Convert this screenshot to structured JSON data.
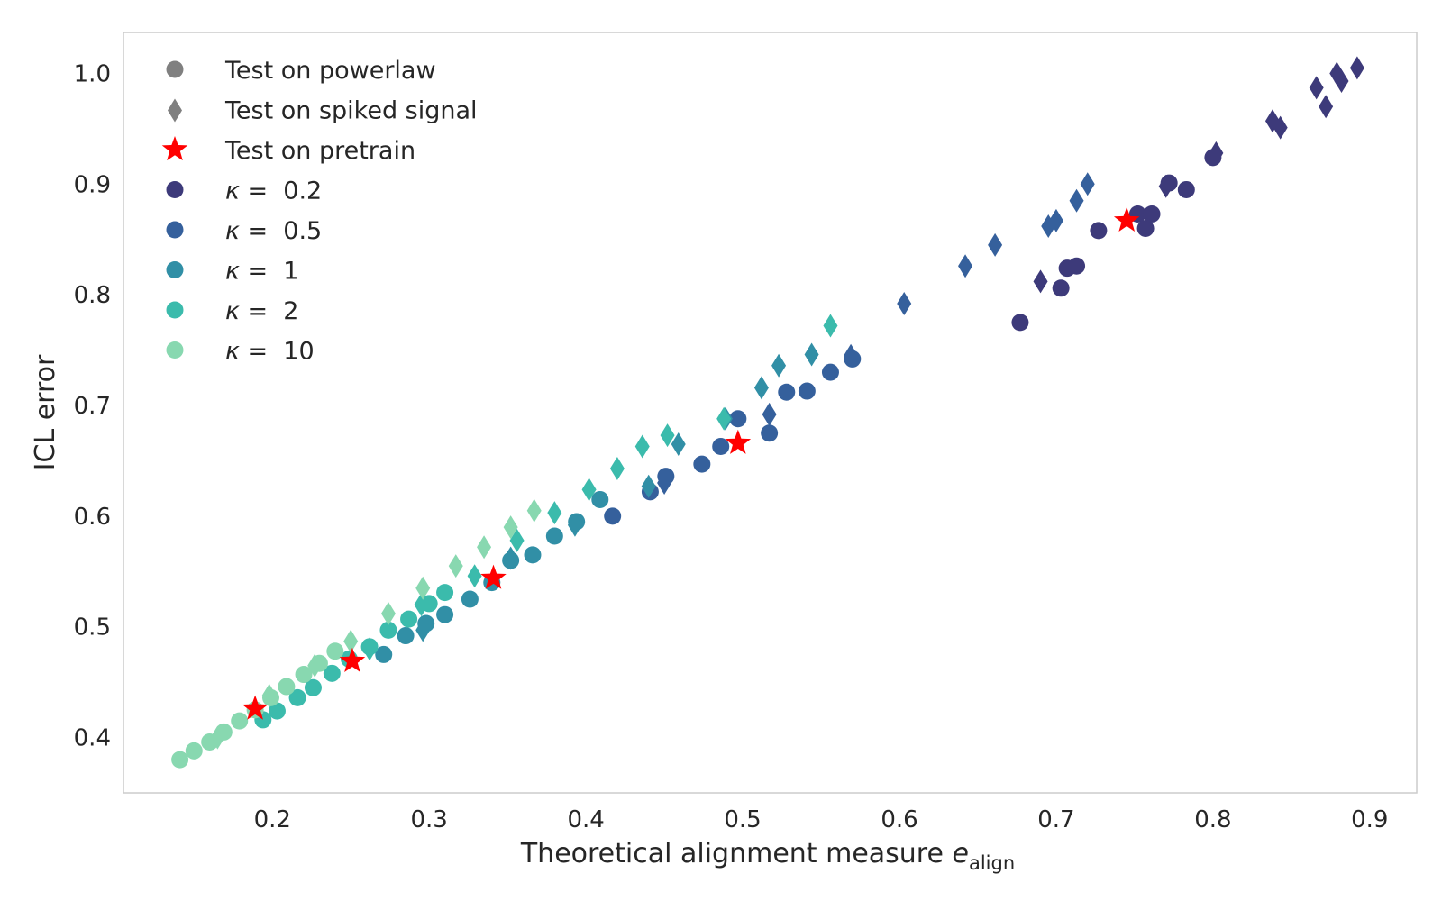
{
  "chart_data": {
    "type": "scatter",
    "xlabel": "Theoretical alignment measure",
    "xlabel_symbol": "e",
    "xlabel_subscript": "align",
    "ylabel": "ICL error",
    "xlim": [
      0.105,
      0.93
    ],
    "ylim": [
      0.35,
      1.037
    ],
    "xticks": [
      0.2,
      0.3,
      0.4,
      0.5,
      0.6,
      0.7,
      0.8,
      0.9
    ],
    "xtick_labels": [
      "0.2",
      "0.3",
      "0.4",
      "0.5",
      "0.6",
      "0.7",
      "0.8",
      "0.9"
    ],
    "yticks": [
      0.4,
      0.5,
      0.6,
      0.7,
      0.8,
      0.9,
      1.0
    ],
    "ytick_labels": [
      "0.4",
      "0.5",
      "0.6",
      "0.7",
      "0.8",
      "0.9",
      "1.0"
    ],
    "grid": false,
    "legend_position": "top-left",
    "legend": [
      {
        "kind": "marker",
        "marker": "circle",
        "color": "#808080",
        "label": "Test on powerlaw"
      },
      {
        "kind": "marker",
        "marker": "diamond",
        "color": "#808080",
        "label": "Test on spiked signal"
      },
      {
        "kind": "marker",
        "marker": "star",
        "color": "#ff0000",
        "label": "Test on pretrain"
      },
      {
        "kind": "kappa",
        "color": "#3d3a7a",
        "label": "κ =  0.2"
      },
      {
        "kind": "kappa",
        "color": "#35609c",
        "label": "κ =  0.5"
      },
      {
        "kind": "kappa",
        "color": "#318fa6",
        "label": "κ =  1"
      },
      {
        "kind": "kappa",
        "color": "#3bbbac",
        "label": "κ =  2"
      },
      {
        "kind": "kappa",
        "color": "#88d8b0",
        "label": "κ =  10"
      }
    ],
    "series": [
      {
        "kappa": "0.2",
        "color": "#3d3a7a",
        "powerlaw": [
          [
            0.677,
            0.775
          ],
          [
            0.703,
            0.806
          ],
          [
            0.707,
            0.824
          ],
          [
            0.713,
            0.826
          ],
          [
            0.727,
            0.858
          ],
          [
            0.752,
            0.873
          ],
          [
            0.757,
            0.86
          ],
          [
            0.761,
            0.873
          ],
          [
            0.772,
            0.901
          ],
          [
            0.783,
            0.895
          ],
          [
            0.8,
            0.924
          ]
        ],
        "spiked": [
          [
            0.69,
            0.812
          ],
          [
            0.77,
            0.898
          ],
          [
            0.802,
            0.928
          ],
          [
            0.838,
            0.957
          ],
          [
            0.843,
            0.951
          ],
          [
            0.866,
            0.987
          ],
          [
            0.872,
            0.97
          ],
          [
            0.879,
            1.0
          ],
          [
            0.882,
            0.993
          ],
          [
            0.892,
            1.005
          ]
        ],
        "pretrain": [
          [
            0.745,
            0.867
          ]
        ]
      },
      {
        "kappa": "0.5",
        "color": "#35609c",
        "powerlaw": [
          [
            0.417,
            0.6
          ],
          [
            0.441,
            0.622
          ],
          [
            0.451,
            0.636
          ],
          [
            0.474,
            0.647
          ],
          [
            0.486,
            0.663
          ],
          [
            0.497,
            0.688
          ],
          [
            0.517,
            0.675
          ],
          [
            0.528,
            0.712
          ],
          [
            0.541,
            0.713
          ],
          [
            0.556,
            0.73
          ],
          [
            0.57,
            0.742
          ]
        ],
        "spiked": [
          [
            0.45,
            0.63
          ],
          [
            0.517,
            0.692
          ],
          [
            0.569,
            0.745
          ],
          [
            0.603,
            0.792
          ],
          [
            0.642,
            0.826
          ],
          [
            0.661,
            0.845
          ],
          [
            0.695,
            0.862
          ],
          [
            0.7,
            0.867
          ],
          [
            0.713,
            0.885
          ],
          [
            0.72,
            0.9
          ]
        ],
        "pretrain": [
          [
            0.497,
            0.666
          ]
        ]
      },
      {
        "kappa": "1",
        "color": "#318fa6",
        "powerlaw": [
          [
            0.271,
            0.475
          ],
          [
            0.285,
            0.492
          ],
          [
            0.298,
            0.503
          ],
          [
            0.31,
            0.511
          ],
          [
            0.326,
            0.525
          ],
          [
            0.34,
            0.54
          ],
          [
            0.352,
            0.56
          ],
          [
            0.366,
            0.565
          ],
          [
            0.38,
            0.582
          ],
          [
            0.394,
            0.595
          ],
          [
            0.409,
            0.615
          ]
        ],
        "spiked": [
          [
            0.296,
            0.497
          ],
          [
            0.352,
            0.562
          ],
          [
            0.393,
            0.592
          ],
          [
            0.44,
            0.627
          ],
          [
            0.459,
            0.665
          ],
          [
            0.489,
            0.688
          ],
          [
            0.512,
            0.716
          ],
          [
            0.523,
            0.736
          ],
          [
            0.544,
            0.746
          ]
        ],
        "pretrain": [
          [
            0.341,
            0.544
          ]
        ]
      },
      {
        "kappa": "2",
        "color": "#3bbbac",
        "powerlaw": [
          [
            0.194,
            0.416
          ],
          [
            0.203,
            0.424
          ],
          [
            0.216,
            0.436
          ],
          [
            0.226,
            0.445
          ],
          [
            0.238,
            0.458
          ],
          [
            0.249,
            0.471
          ],
          [
            0.262,
            0.482
          ],
          [
            0.274,
            0.497
          ],
          [
            0.287,
            0.507
          ],
          [
            0.3,
            0.521
          ],
          [
            0.31,
            0.531
          ]
        ],
        "spiked": [
          [
            0.262,
            0.48
          ],
          [
            0.295,
            0.52
          ],
          [
            0.329,
            0.546
          ],
          [
            0.356,
            0.578
          ],
          [
            0.38,
            0.603
          ],
          [
            0.402,
            0.624
          ],
          [
            0.42,
            0.643
          ],
          [
            0.436,
            0.663
          ],
          [
            0.452,
            0.673
          ],
          [
            0.488,
            0.688
          ],
          [
            0.556,
            0.772
          ]
        ],
        "pretrain": [
          [
            0.251,
            0.469
          ]
        ]
      },
      {
        "kappa": "10",
        "color": "#88d8b0",
        "powerlaw": [
          [
            0.141,
            0.38
          ],
          [
            0.15,
            0.388
          ],
          [
            0.16,
            0.396
          ],
          [
            0.169,
            0.405
          ],
          [
            0.179,
            0.415
          ],
          [
            0.189,
            0.425
          ],
          [
            0.199,
            0.436
          ],
          [
            0.209,
            0.446
          ],
          [
            0.22,
            0.457
          ],
          [
            0.23,
            0.467
          ],
          [
            0.24,
            0.478
          ]
        ],
        "spiked": [
          [
            0.165,
            0.4
          ],
          [
            0.198,
            0.438
          ],
          [
            0.227,
            0.465
          ],
          [
            0.25,
            0.487
          ],
          [
            0.274,
            0.512
          ],
          [
            0.296,
            0.535
          ],
          [
            0.317,
            0.555
          ],
          [
            0.335,
            0.572
          ],
          [
            0.352,
            0.59
          ],
          [
            0.367,
            0.605
          ]
        ],
        "pretrain": [
          [
            0.189,
            0.426
          ]
        ]
      }
    ]
  }
}
